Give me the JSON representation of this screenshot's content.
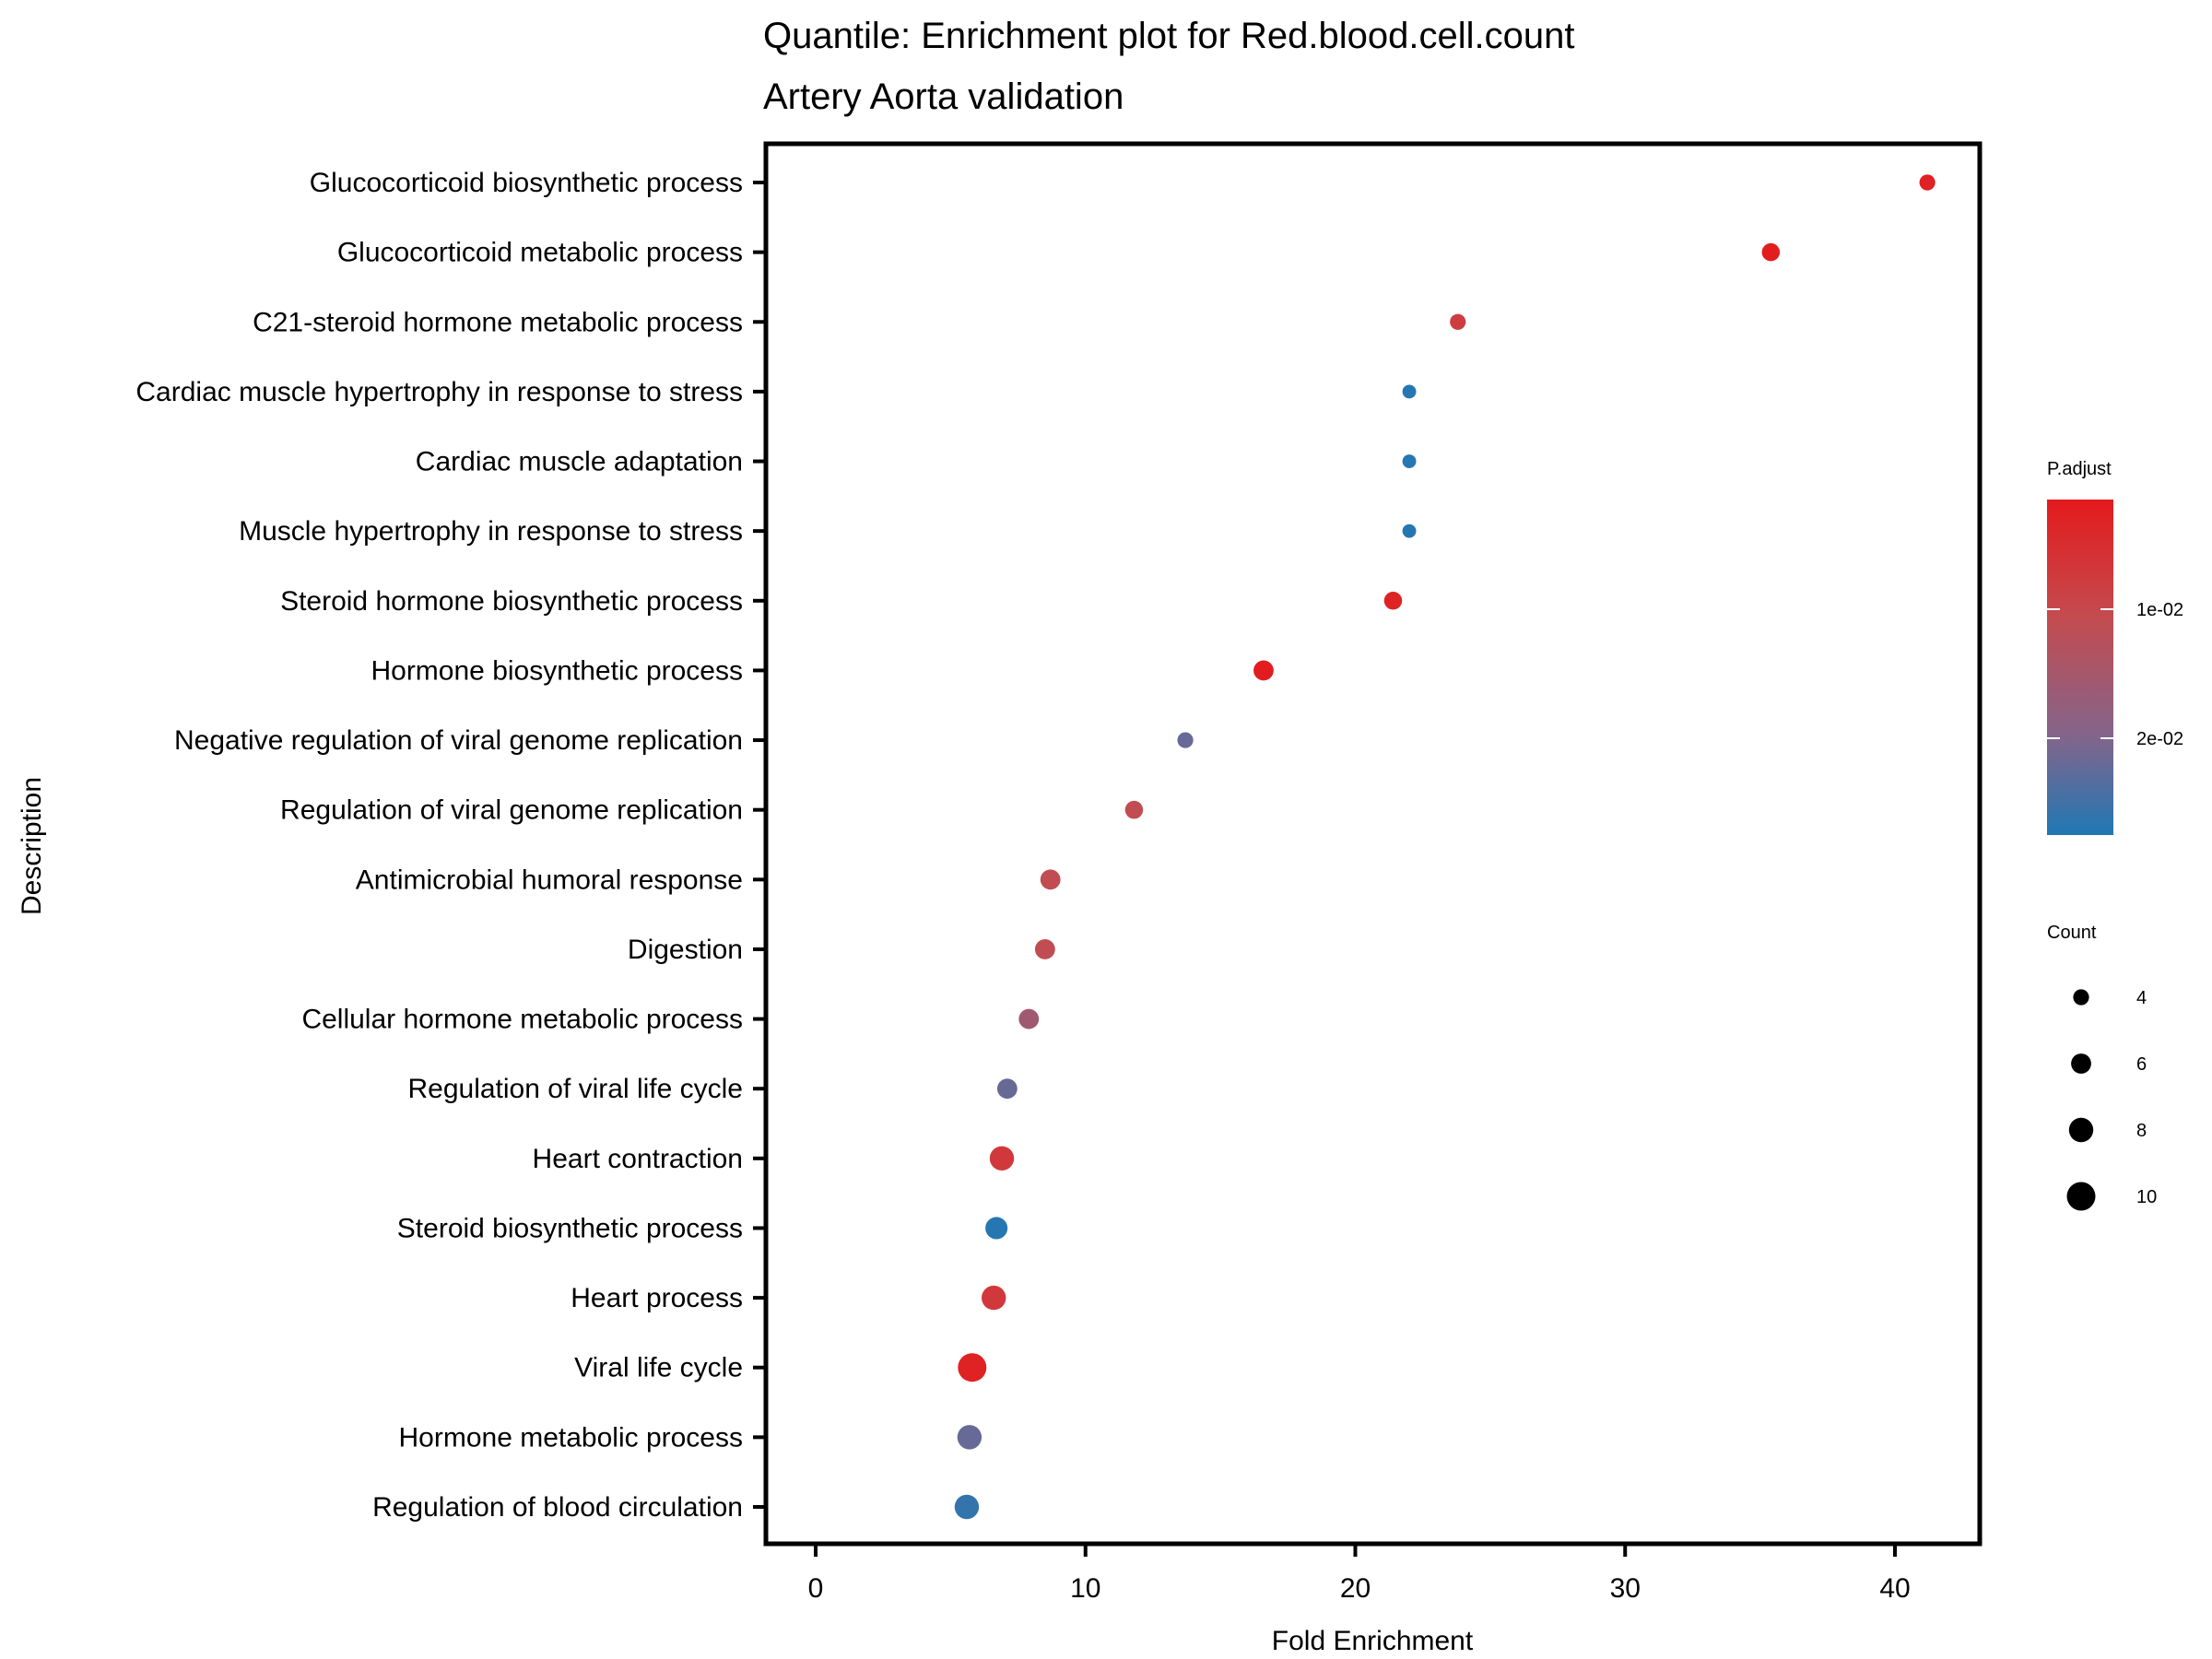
{
  "chart_data": {
    "type": "scatter",
    "title": "Quantile: Enrichment plot for Red.blood.cell.count",
    "subtitle": "Artery Aorta validation",
    "xlabel": "Fold Enrichment",
    "ylabel": "Description",
    "xlim": [
      -1.8,
      43.2
    ],
    "xticks": [
      0,
      10,
      20,
      30,
      40
    ],
    "xtick_labels": [
      "0",
      "10",
      "20",
      "30",
      "40"
    ],
    "grid": false,
    "categories": [
      "Glucocorticoid biosynthetic process",
      "Glucocorticoid metabolic process",
      "C21-steroid hormone metabolic process",
      "Cardiac muscle hypertrophy in response to stress",
      "Cardiac muscle adaptation",
      "Muscle hypertrophy in response to stress",
      "Steroid hormone biosynthetic process",
      "Hormone biosynthetic process",
      "Negative regulation of viral genome replication",
      "Regulation of viral genome replication",
      "Antimicrobial humoral response",
      "Digestion",
      "Cellular hormone metabolic process",
      "Regulation of viral life cycle",
      "Heart contraction",
      "Steroid biosynthetic process",
      "Heart process",
      "Viral life cycle",
      "Hormone metabolic process",
      "Regulation of blood circulation"
    ],
    "points": [
      {
        "label": "Glucocorticoid biosynthetic process",
        "fold_enrichment": 41.2,
        "count": 4,
        "p_adjust": 0.003
      },
      {
        "label": "Glucocorticoid metabolic process",
        "fold_enrichment": 35.4,
        "count": 5,
        "p_adjust": 0.002
      },
      {
        "label": "C21-steroid hormone metabolic process",
        "fold_enrichment": 23.8,
        "count": 4,
        "p_adjust": 0.008
      },
      {
        "label": "Cardiac muscle hypertrophy in response to stress",
        "fold_enrichment": 22.0,
        "count": 3,
        "p_adjust": 0.027
      },
      {
        "label": "Cardiac muscle adaptation",
        "fold_enrichment": 22.0,
        "count": 3,
        "p_adjust": 0.027
      },
      {
        "label": "Muscle hypertrophy in response to stress",
        "fold_enrichment": 22.0,
        "count": 3,
        "p_adjust": 0.027
      },
      {
        "label": "Steroid hormone biosynthetic process",
        "fold_enrichment": 21.4,
        "count": 5,
        "p_adjust": 0.003
      },
      {
        "label": "Hormone biosynthetic process",
        "fold_enrichment": 16.6,
        "count": 6,
        "p_adjust": 0.002
      },
      {
        "label": "Negative regulation of viral genome replication",
        "fold_enrichment": 13.7,
        "count": 4,
        "p_adjust": 0.022
      },
      {
        "label": "Regulation of viral genome replication",
        "fold_enrichment": 11.8,
        "count": 5,
        "p_adjust": 0.011
      },
      {
        "label": "Antimicrobial humoral response",
        "fold_enrichment": 8.7,
        "count": 6,
        "p_adjust": 0.011
      },
      {
        "label": "Digestion",
        "fold_enrichment": 8.5,
        "count": 6,
        "p_adjust": 0.011
      },
      {
        "label": "Cellular hormone metabolic process",
        "fold_enrichment": 7.9,
        "count": 6,
        "p_adjust": 0.016
      },
      {
        "label": "Regulation of viral life cycle",
        "fold_enrichment": 7.1,
        "count": 6,
        "p_adjust": 0.022
      },
      {
        "label": "Heart contraction",
        "fold_enrichment": 6.9,
        "count": 8,
        "p_adjust": 0.007
      },
      {
        "label": "Steroid biosynthetic process",
        "fold_enrichment": 6.7,
        "count": 7,
        "p_adjust": 0.027
      },
      {
        "label": "Heart process",
        "fold_enrichment": 6.6,
        "count": 8,
        "p_adjust": 0.007
      },
      {
        "label": "Viral life cycle",
        "fold_enrichment": 5.8,
        "count": 10,
        "p_adjust": 0.003
      },
      {
        "label": "Hormone metabolic process",
        "fold_enrichment": 5.7,
        "count": 8,
        "p_adjust": 0.022
      },
      {
        "label": "Regulation of blood circulation",
        "fold_enrichment": 5.6,
        "count": 8,
        "p_adjust": 0.026
      }
    ],
    "color_legend": {
      "title": "P.adjust",
      "range": [
        0.0015,
        0.0275
      ],
      "ticks": [
        0.01,
        0.02
      ],
      "tick_labels": [
        "1e-02",
        "2e-02"
      ],
      "low_color": "#e41a1c",
      "high_color": "#1f78b4",
      "mid_color": "#a0566e",
      "placement": "right"
    },
    "size_legend": {
      "title": "Count",
      "values": [
        4,
        6,
        8,
        10
      ],
      "labels": [
        "4",
        "6",
        "8",
        "10"
      ],
      "placement": "right"
    }
  }
}
